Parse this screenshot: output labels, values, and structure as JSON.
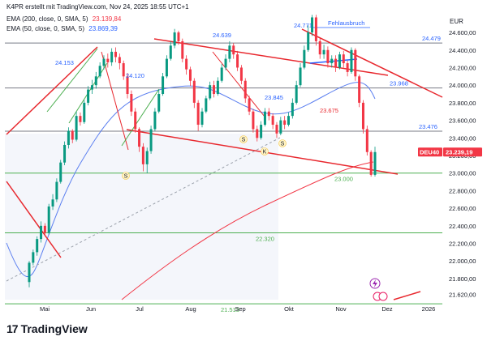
{
  "header": {
    "line1": "K4PR erstellt mit TradingView.com, Nov 24, 2025 18:55 UTC+1",
    "ema200_label": "EMA (200, close, 0, SMA, 5)",
    "ema200_value": "23.139,84",
    "ema50_label": "EMA (50, close, 0, SMA, 5)",
    "ema50_value": "23.869,39",
    "currency": "EUR",
    "ema200_color": "#f23645",
    "ema50_color": "#2962ff"
  },
  "footer": {
    "brand": "TradingView",
    "logo_mark": "17"
  },
  "chart_data": {
    "type": "candlestick",
    "symbol": "DEU40",
    "last_price": "23.239,19",
    "y_axis": {
      "ylim": [
        21560,
        24840
      ],
      "ticks": [
        "24.600,00",
        "24.400,00",
        "24.200,00",
        "24.000,00",
        "23.800,00",
        "23.600,00",
        "23.400,00",
        "23.200,00",
        "23.000,00",
        "22.800,00",
        "22.600,00",
        "22.400,00",
        "22.200,00",
        "22.000,00",
        "21.800,00",
        "21.620,00"
      ],
      "tick_values": [
        24600,
        24400,
        24200,
        24000,
        23800,
        23600,
        23400,
        23200,
        23000,
        22800,
        22600,
        22400,
        22200,
        22000,
        21800,
        21620
      ]
    },
    "x_axis": {
      "ticks": [
        "Mai",
        "Jun",
        "Jul",
        "Aug",
        "Sep",
        "Okt",
        "Nov",
        "Dez",
        "2026"
      ]
    },
    "horizontal_levels": [
      {
        "value": 24479,
        "label": "24.479"
      },
      {
        "value": 23968,
        "label": "23.968"
      },
      {
        "value": 23476,
        "label": "23.476"
      },
      {
        "value": 23000,
        "label": "23.000"
      },
      {
        "value": 22320,
        "label": "22.320"
      },
      {
        "value": 21513,
        "label": "21.513"
      }
    ],
    "annotations": [
      {
        "text": "24.771",
        "value": 24771
      },
      {
        "text": "Fehlausbruch"
      },
      {
        "text": "24.639",
        "value": 24639
      },
      {
        "text": "24.153",
        "value": 24153
      },
      {
        "text": "24.120",
        "value": 24120
      },
      {
        "text": "23.845",
        "value": 23845
      },
      {
        "text": "23.675",
        "value": 23675
      },
      {
        "text": "S"
      },
      {
        "text": "S"
      },
      {
        "text": "K"
      },
      {
        "text": "S"
      }
    ],
    "candles": [
      [
        21760,
        21980,
        21700,
        22000
      ],
      [
        21980,
        22100,
        21950,
        22130
      ],
      [
        22100,
        22250,
        22060,
        22280
      ],
      [
        22250,
        22400,
        22210,
        22450
      ],
      [
        22400,
        22320,
        22280,
        22430
      ],
      [
        22320,
        22620,
        22300,
        22650
      ],
      [
        22620,
        22700,
        22580,
        22760
      ],
      [
        22700,
        22900,
        22670,
        22940
      ],
      [
        22900,
        23120,
        22880,
        23150
      ],
      [
        23120,
        23320,
        23090,
        23360
      ],
      [
        23320,
        23480,
        23280,
        23520
      ],
      [
        23480,
        23380,
        23340,
        23500
      ],
      [
        23380,
        23650,
        23360,
        23700
      ],
      [
        23650,
        23580,
        23540,
        23690
      ],
      [
        23580,
        23800,
        23560,
        23830
      ],
      [
        23800,
        23950,
        23770,
        23990
      ],
      [
        23950,
        24000,
        23900,
        24060
      ],
      [
        24000,
        24100,
        23960,
        24150
      ],
      [
        24100,
        24220,
        24080,
        24260
      ],
      [
        24220,
        24300,
        24180,
        24340
      ],
      [
        24300,
        24260,
        24200,
        24360
      ],
      [
        24260,
        24380,
        24220,
        24420
      ],
      [
        24380,
        24320,
        24260,
        24430
      ],
      [
        24320,
        24250,
        24180,
        24360
      ],
      [
        24250,
        24100,
        24060,
        24280
      ],
      [
        24100,
        23900,
        23850,
        24140
      ],
      [
        23900,
        23700,
        23650,
        23940
      ],
      [
        23700,
        23500,
        23460,
        23740
      ],
      [
        23500,
        23300,
        23240,
        23520
      ],
      [
        23300,
        23100,
        23020,
        23340
      ],
      [
        23100,
        23250,
        23000,
        23290
      ],
      [
        23250,
        23500,
        23220,
        23540
      ],
      [
        23500,
        23700,
        23480,
        23740
      ],
      [
        23700,
        23900,
        23680,
        23950
      ],
      [
        23900,
        24100,
        23880,
        24140
      ],
      [
        24100,
        24300,
        24080,
        24340
      ],
      [
        24300,
        24450,
        24280,
        24500
      ],
      [
        24450,
        24600,
        24420,
        24640
      ],
      [
        24600,
        24500,
        24460,
        24620
      ],
      [
        24500,
        24300,
        24260,
        24530
      ],
      [
        24300,
        24180,
        24120,
        24340
      ],
      [
        24180,
        24050,
        23990,
        24210
      ],
      [
        24050,
        23800,
        23740,
        24080
      ],
      [
        23800,
        23550,
        23480,
        23830
      ],
      [
        23550,
        23700,
        23520,
        23740
      ],
      [
        23700,
        23850,
        23680,
        23880
      ],
      [
        23850,
        24000,
        23830,
        24040
      ],
      [
        24000,
        23900,
        23860,
        24050
      ],
      [
        23900,
        24050,
        23880,
        24090
      ],
      [
        24050,
        24200,
        24030,
        24240
      ],
      [
        24200,
        24300,
        24170,
        24350
      ],
      [
        24300,
        24450,
        24260,
        24500
      ],
      [
        24450,
        24350,
        24300,
        24480
      ],
      [
        24350,
        24200,
        24160,
        24390
      ],
      [
        24200,
        24050,
        24010,
        24230
      ],
      [
        24050,
        23850,
        23800,
        24080
      ],
      [
        23850,
        23700,
        23660,
        23880
      ],
      [
        23700,
        23500,
        23460,
        23730
      ],
      [
        23500,
        23400,
        23360,
        23540
      ],
      [
        23400,
        23550,
        23380,
        23590
      ],
      [
        23550,
        23700,
        23530,
        23740
      ],
      [
        23700,
        23650,
        23600,
        23740
      ],
      [
        23650,
        23550,
        23500,
        23680
      ],
      [
        23550,
        23450,
        23400,
        23580
      ],
      [
        23450,
        23600,
        23430,
        23640
      ],
      [
        23600,
        23550,
        23500,
        23650
      ],
      [
        23550,
        23650,
        23530,
        23690
      ],
      [
        23650,
        23800,
        23620,
        23850
      ],
      [
        23800,
        24000,
        23780,
        24050
      ],
      [
        24000,
        24200,
        23980,
        24250
      ],
      [
        24200,
        24400,
        24180,
        24450
      ],
      [
        24400,
        24600,
        24380,
        24680
      ],
      [
        24600,
        24771,
        24560,
        24800
      ],
      [
        24771,
        24500,
        24450,
        24800
      ],
      [
        24500,
        24350,
        24300,
        24540
      ],
      [
        24350,
        24400,
        24300,
        24460
      ],
      [
        24400,
        24250,
        24200,
        24440
      ],
      [
        24250,
        24300,
        24200,
        24340
      ],
      [
        24300,
        24200,
        24150,
        24340
      ],
      [
        24200,
        24350,
        24180,
        24380
      ],
      [
        24350,
        24250,
        24200,
        24390
      ],
      [
        24250,
        24150,
        24100,
        24280
      ],
      [
        24150,
        24400,
        24130,
        24430
      ],
      [
        24400,
        24100,
        24050,
        24420
      ],
      [
        24100,
        23800,
        23750,
        24120
      ],
      [
        23800,
        23500,
        23450,
        23830
      ],
      [
        23500,
        23239,
        23200,
        23540
      ],
      [
        23239,
        22980,
        22960,
        23260
      ],
      [
        22980,
        23239,
        22960,
        23300
      ]
    ]
  }
}
